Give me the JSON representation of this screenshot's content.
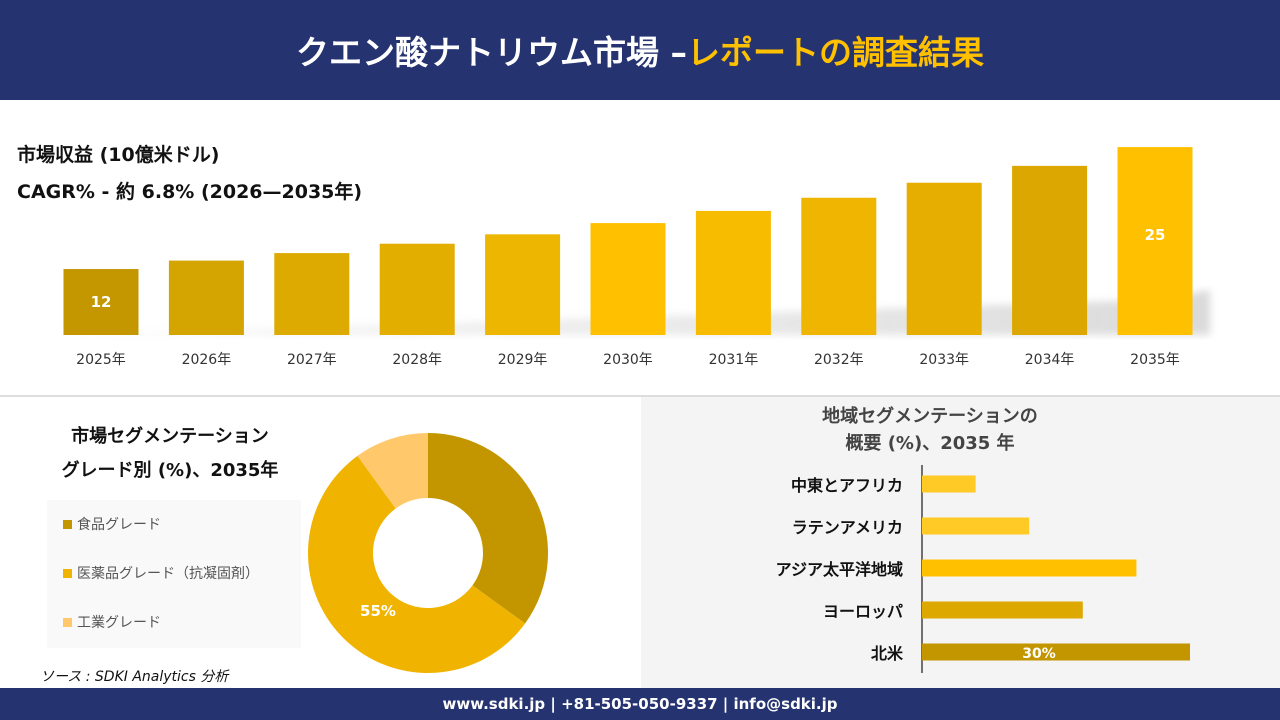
{
  "header": {
    "title_main": "クエン酸ナトリウム市場 –",
    "title_accent": "レポートの調査結果"
  },
  "colors": {
    "header_bg": "#253370",
    "accent": "#ffc000"
  },
  "chart_data": [
    {
      "type": "bar",
      "title": "市場収益 (10億米ドル)",
      "subtitle": "CAGR% - 約 6.8% (2026—2035年)",
      "categories": [
        "2025年",
        "2026年",
        "2027年",
        "2028年",
        "2029年",
        "2030年",
        "2031年",
        "2032年",
        "2033年",
        "2034年",
        "2035年"
      ],
      "values": [
        12,
        12.9,
        13.7,
        14.7,
        15.7,
        16.9,
        18.2,
        19.6,
        21.2,
        23.0,
        25
      ],
      "data_labels": {
        "0": "12",
        "10": "25"
      },
      "colors": [
        "#c49700",
        "#d4a400",
        "#dcaa00",
        "#e2ae00",
        "#edb600",
        "#ffc000",
        "#f7bb00",
        "#efb500",
        "#e6ae00",
        "#dba700",
        "#ffc000"
      ]
    },
    {
      "type": "pie",
      "title_line1": "市場セグメンテーション",
      "title_line2": "グレード別 (%)、2035年",
      "labels": [
        "食品グレード",
        "医薬品グレード（抗凝固剤）",
        "工業グレード"
      ],
      "values": [
        35,
        55,
        10
      ],
      "data_labels": {
        "1": "55%"
      },
      "colors": [
        "#c39600",
        "#f0b400",
        "#ffc96b"
      ]
    },
    {
      "type": "bar",
      "orientation": "horizontal",
      "title_line1": "地域セグメンテーションの",
      "title_line2": "概要 (%)、2035 年",
      "categories": [
        "中東とアフリカ",
        "ラテンアメリカ",
        "アジア太平洋地域",
        "ヨーロッパ",
        "北米"
      ],
      "values": [
        6,
        12,
        24,
        18,
        30
      ],
      "data_labels": {
        "4": "30%"
      },
      "colors": [
        "#ffc926",
        "#ffc926",
        "#ffc000",
        "#dda900",
        "#c39600"
      ]
    }
  ],
  "source": "ソース : SDKI Analytics 分析",
  "footer": "www.sdki.jp | +81-505-050-9337 | info@sdki.jp"
}
